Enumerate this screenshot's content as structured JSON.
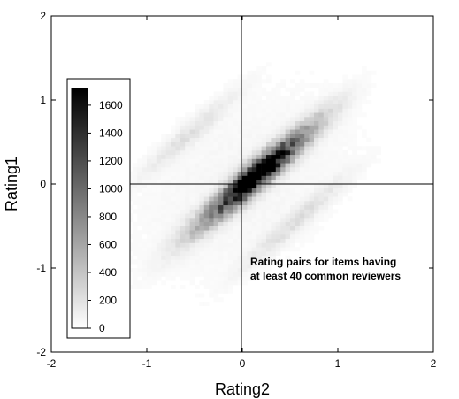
{
  "chart_data": {
    "type": "heatmap",
    "title": "",
    "xlabel": "Rating2",
    "ylabel": "Rating1",
    "xlim": [
      -2,
      2
    ],
    "ylim": [
      -2,
      2
    ],
    "x_ticks": [
      "-2",
      "-1",
      "0",
      "1",
      "2"
    ],
    "y_ticks": [
      "-2",
      "-1",
      "0",
      "1",
      "2"
    ],
    "annotation_lines": [
      "Rating pairs for items having",
      "at least 40 common reviewers"
    ],
    "colorbar": {
      "ticks": [
        "0",
        "200",
        "400",
        "600",
        "800",
        "1000",
        "1200",
        "1400",
        "1600"
      ],
      "tick_values": [
        0,
        200,
        400,
        600,
        800,
        1000,
        1200,
        1400,
        1600
      ],
      "max": 1720,
      "low_color": "#ffffff",
      "high_color": "#000000"
    },
    "bin_size": 0.05,
    "density_components": [
      {
        "note": "main diagonal band",
        "cx": 0.15,
        "cy": 0.1,
        "sd_along": 0.55,
        "sd_across": 0.09,
        "angle_deg": 45,
        "peak": 1650
      },
      {
        "note": "central core",
        "cx": 0.15,
        "cy": 0.12,
        "sd_along": 0.22,
        "sd_across": 0.07,
        "angle_deg": 45,
        "peak": 700
      },
      {
        "note": "upper-left band",
        "cx": -0.55,
        "cy": 0.6,
        "sd_along": 0.45,
        "sd_across": 0.07,
        "angle_deg": 45,
        "peak": 180
      },
      {
        "note": "lower-right band",
        "cx": 0.55,
        "cy": -0.45,
        "sd_along": 0.5,
        "sd_across": 0.07,
        "angle_deg": 45,
        "peak": 200
      },
      {
        "note": "diffuse background",
        "cx": 0.0,
        "cy": 0.0,
        "sd_along": 1.1,
        "sd_across": 0.7,
        "angle_deg": 45,
        "peak": 60
      }
    ]
  }
}
